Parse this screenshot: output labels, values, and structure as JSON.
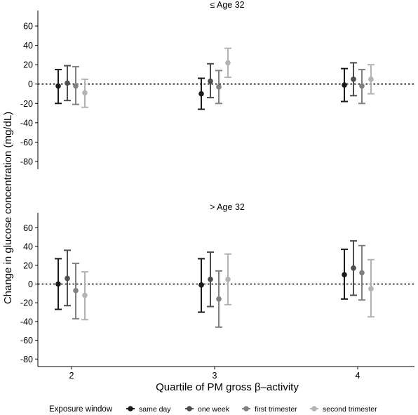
{
  "chart_data": {
    "type": "scatter",
    "y_axis_label": "Change in glucose concentration (mg/dL)",
    "x_axis_label": "Quartile of PM gross β–activity",
    "x_categories": [
      "2",
      "3",
      "4"
    ],
    "y_ticks": [
      60,
      40,
      20,
      0,
      -20,
      -40,
      -60,
      -80
    ],
    "ylim": [
      -88,
      76
    ],
    "reference_line": 0,
    "legend": {
      "title": "Exposure window",
      "position": "bottom",
      "items": [
        "same day",
        "one week",
        "first trimester",
        "second trimester"
      ]
    },
    "series_colors": [
      "#1a1a1a",
      "#4d4d4d",
      "#808080",
      "#b3b3b3"
    ],
    "panels": [
      {
        "title": "≤ Age 32",
        "series": [
          {
            "name": "same day",
            "estimate": [
              -2,
              -10,
              -1
            ],
            "lower": [
              -20,
              -26,
              -18
            ],
            "upper": [
              15,
              6,
              16
            ]
          },
          {
            "name": "one week",
            "estimate": [
              1,
              3,
              5
            ],
            "lower": [
              -17,
              -14,
              -12
            ],
            "upper": [
              19,
              21,
              22
            ]
          },
          {
            "name": "first trimester",
            "estimate": [
              -2,
              -3,
              -2
            ],
            "lower": [
              -21,
              -20,
              -20
            ],
            "upper": [
              18,
              14,
              15
            ]
          },
          {
            "name": "second trimester",
            "estimate": [
              -9,
              22,
              5
            ],
            "lower": [
              -24,
              7,
              -10
            ],
            "upper": [
              5,
              37,
              20
            ]
          }
        ]
      },
      {
        "title": "> Age 32",
        "series": [
          {
            "name": "same day",
            "estimate": [
              0,
              -1,
              10
            ],
            "lower": [
              -27,
              -30,
              -16
            ],
            "upper": [
              27,
              27,
              37
            ]
          },
          {
            "name": "one week",
            "estimate": [
              6,
              5,
              17
            ],
            "lower": [
              -23,
              -24,
              -12
            ],
            "upper": [
              36,
              34,
              46
            ]
          },
          {
            "name": "first trimester",
            "estimate": [
              -7,
              -16,
              12
            ],
            "lower": [
              -37,
              -46,
              -17
            ],
            "upper": [
              22,
              14,
              41
            ]
          },
          {
            "name": "second trimester",
            "estimate": [
              -12,
              5,
              -5
            ],
            "lower": [
              -38,
              -22,
              -35
            ],
            "upper": [
              13,
              32,
              26
            ]
          }
        ]
      }
    ]
  }
}
